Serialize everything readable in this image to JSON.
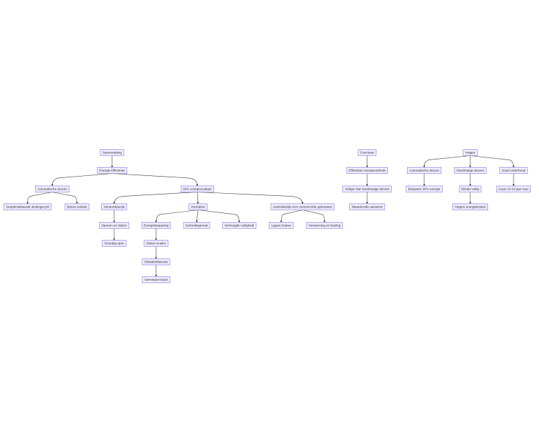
{
  "nodes": [
    {
      "id": "sam",
      "label": "Samenvatting"
    },
    {
      "id": "ee",
      "label": "Energie-Efficiëntie"
    },
    {
      "id": "ad1",
      "label": "Automatische deuren"
    },
    {
      "id": "gsc",
      "label": "Geoptimaliseerde sluitingscycli"
    },
    {
      "id": "bi",
      "label": "Betere isolatie"
    },
    {
      "id": "ez",
      "label": "30% energiezuiniger"
    },
    {
      "id": "sd",
      "label": "Sensordetectie"
    },
    {
      "id": "oes",
      "label": "Openen en sluiten"
    },
    {
      "id": "oo",
      "label": "Onnodig open"
    },
    {
      "id": "vd",
      "label": "Voordelen"
    },
    {
      "id": "eb",
      "label": "Energiebesparing"
    },
    {
      "id": "gg",
      "label": "Gebruiksgemak"
    },
    {
      "id": "vv",
      "label": "Verhoogde veiligheid"
    },
    {
      "id": "ss",
      "label": "Sluiten sneller"
    },
    {
      "id": "od",
      "label": "Obstakeldetectie"
    },
    {
      "id": "vl",
      "label": "Vermindert letsel"
    },
    {
      "id": "acg",
      "label": "Aantrekkelijk voor commerciële gebouwen"
    },
    {
      "id": "lk",
      "label": "Lagere kosten"
    },
    {
      "id": "vek",
      "label": "Verwarming en koeling"
    },
    {
      "id": "con",
      "label": "Conclusie"
    },
    {
      "id": "eev",
      "label": "Efficiënter energieverbruik"
    },
    {
      "id": "vhd",
      "label": "Veiliger dan handmatige deuren"
    },
    {
      "id": "wa",
      "label": "Waardevolle aanwinst"
    },
    {
      "id": "vr",
      "label": "Vragen"
    },
    {
      "id": "ad2",
      "label": "Automatische deuren"
    },
    {
      "id": "hd",
      "label": "Handmatige deuren"
    },
    {
      "id": "go",
      "label": "Goed onderhoud"
    },
    {
      "id": "b30",
      "label": "Besparen 30% energie"
    },
    {
      "id": "mv",
      "label": "Minder veilig"
    },
    {
      "id": "hek",
      "label": "Hogere energiekosten"
    },
    {
      "id": "g1020",
      "label": "Gaan 10-20 jaar mee"
    }
  ],
  "edges": [
    [
      "sam",
      "ee"
    ],
    [
      "ee",
      "ad1"
    ],
    [
      "ee",
      "ez"
    ],
    [
      "ad1",
      "gsc"
    ],
    [
      "ad1",
      "bi"
    ],
    [
      "ez",
      "sd"
    ],
    [
      "ez",
      "vd"
    ],
    [
      "ez",
      "acg"
    ],
    [
      "sd",
      "oes"
    ],
    [
      "oes",
      "oo"
    ],
    [
      "vd",
      "eb"
    ],
    [
      "vd",
      "gg"
    ],
    [
      "vd",
      "vv"
    ],
    [
      "eb",
      "ss"
    ],
    [
      "ss",
      "od"
    ],
    [
      "od",
      "vl"
    ],
    [
      "acg",
      "lk"
    ],
    [
      "acg",
      "vek"
    ],
    [
      "con",
      "eev"
    ],
    [
      "eev",
      "vhd"
    ],
    [
      "vhd",
      "wa"
    ],
    [
      "vr",
      "ad2"
    ],
    [
      "vr",
      "hd"
    ],
    [
      "vr",
      "go"
    ],
    [
      "ad2",
      "b30"
    ],
    [
      "hd",
      "mv"
    ],
    [
      "mv",
      "hek"
    ],
    [
      "go",
      "g1020"
    ]
  ],
  "colors": {
    "node_fill": "#ECECFF",
    "node_stroke": "#9370DB",
    "edge": "#333333"
  }
}
